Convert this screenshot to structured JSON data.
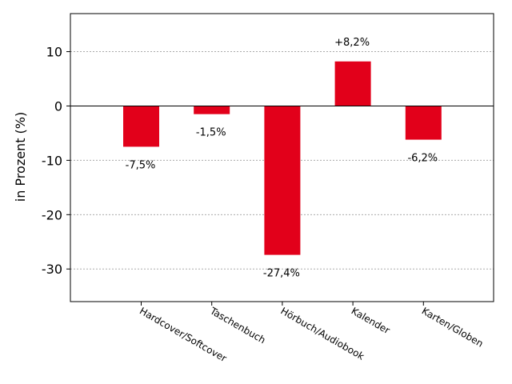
{
  "chart_data": {
    "type": "bar",
    "ylabel": "in Prozent (%)",
    "categories": [
      "Hardcover/Softcover",
      "Taschenbuch",
      "Hörbuch/Audiobook",
      "Kalender",
      "Karten/Globen"
    ],
    "values": [
      -7.5,
      -1.5,
      -27.4,
      8.2,
      -6.2
    ],
    "data_labels": [
      "-7,5%",
      "-1,5%",
      "-27,4%",
      "+8,2%",
      "-6,2%"
    ],
    "ylim": [
      -36,
      17
    ],
    "yticks": [
      10,
      0,
      -10,
      -20,
      -30
    ],
    "ytick_labels": [
      "10",
      "0",
      "-10",
      "-20",
      "-30"
    ],
    "grid": "horizontal dotted",
    "bar_color": "#e2001a"
  }
}
